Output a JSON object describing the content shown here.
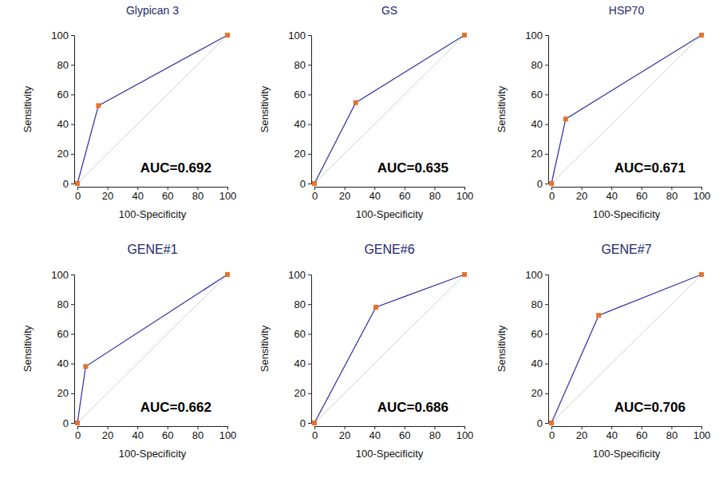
{
  "chart_data": [
    {
      "type": "line",
      "title": "Glypican 3",
      "x_label": "100-Specificity",
      "y_label": "Sensitivity",
      "annotation": "AUC=0.692",
      "x": [
        0,
        14,
        100
      ],
      "values": [
        0,
        52.5,
        100
      ],
      "color": "#3a3aa6",
      "marker": "square",
      "xlim": [
        0,
        100
      ],
      "ylim": [
        0,
        100
      ],
      "xticks": [
        0,
        20,
        40,
        60,
        80,
        100
      ],
      "yticks": [
        0,
        20,
        40,
        60,
        80,
        100
      ],
      "grid": false
    },
    {
      "type": "line",
      "title": "GS",
      "x_label": "100-Specificity",
      "y_label": "Sensitivity",
      "annotation": "AUC=0.635",
      "x": [
        0,
        27.5,
        100
      ],
      "values": [
        0,
        54.5,
        100
      ],
      "color": "#3a3aa6",
      "marker": "square",
      "xlim": [
        0,
        100
      ],
      "ylim": [
        0,
        100
      ],
      "xticks": [
        0,
        20,
        40,
        60,
        80,
        100
      ],
      "yticks": [
        0,
        20,
        40,
        60,
        80,
        100
      ],
      "grid": false
    },
    {
      "type": "line",
      "title": "HSP70",
      "x_label": "100-Specificity",
      "y_label": "Sensitivity",
      "annotation": "AUC=0.671",
      "x": [
        0,
        9.5,
        100
      ],
      "values": [
        0,
        43.5,
        100
      ],
      "color": "#3a3aa6",
      "marker": "square",
      "xlim": [
        0,
        100
      ],
      "ylim": [
        0,
        100
      ],
      "xticks": [
        0,
        20,
        40,
        60,
        80,
        100
      ],
      "yticks": [
        0,
        20,
        40,
        60,
        80,
        100
      ],
      "grid": false
    },
    {
      "type": "line",
      "title": "GENE#1",
      "x_label": "100-Specificity",
      "y_label": "Sensitivity",
      "annotation": "AUC=0.662",
      "x": [
        0,
        5.5,
        100
      ],
      "values": [
        0,
        38,
        100
      ],
      "color": "#3a3aa6",
      "marker": "square",
      "xlim": [
        0,
        100
      ],
      "ylim": [
        0,
        100
      ],
      "xticks": [
        0,
        20,
        40,
        60,
        80,
        100
      ],
      "yticks": [
        0,
        20,
        40,
        60,
        80,
        100
      ],
      "grid": false
    },
    {
      "type": "line",
      "title": "GENE#6",
      "x_label": "100-Specificity",
      "y_label": "Sensitivity",
      "annotation": "AUC=0.686",
      "x": [
        0,
        41,
        100
      ],
      "values": [
        0,
        78,
        100
      ],
      "color": "#3a3aa6",
      "marker": "square",
      "xlim": [
        0,
        100
      ],
      "ylim": [
        0,
        100
      ],
      "xticks": [
        0,
        20,
        40,
        60,
        80,
        100
      ],
      "yticks": [
        0,
        20,
        40,
        60,
        80,
        100
      ],
      "grid": false
    },
    {
      "type": "line",
      "title": "GENE#7",
      "x_label": "100-Specificity",
      "y_label": "Sensitivity",
      "annotation": "AUC=0.706",
      "x": [
        0,
        31.5,
        100
      ],
      "values": [
        0,
        72.5,
        100
      ],
      "color": "#3a3aa6",
      "marker": "square",
      "xlim": [
        0,
        100
      ],
      "ylim": [
        0,
        100
      ],
      "xticks": [
        0,
        20,
        40,
        60,
        80,
        100
      ],
      "yticks": [
        0,
        20,
        40,
        60,
        80,
        100
      ],
      "grid": false
    }
  ]
}
